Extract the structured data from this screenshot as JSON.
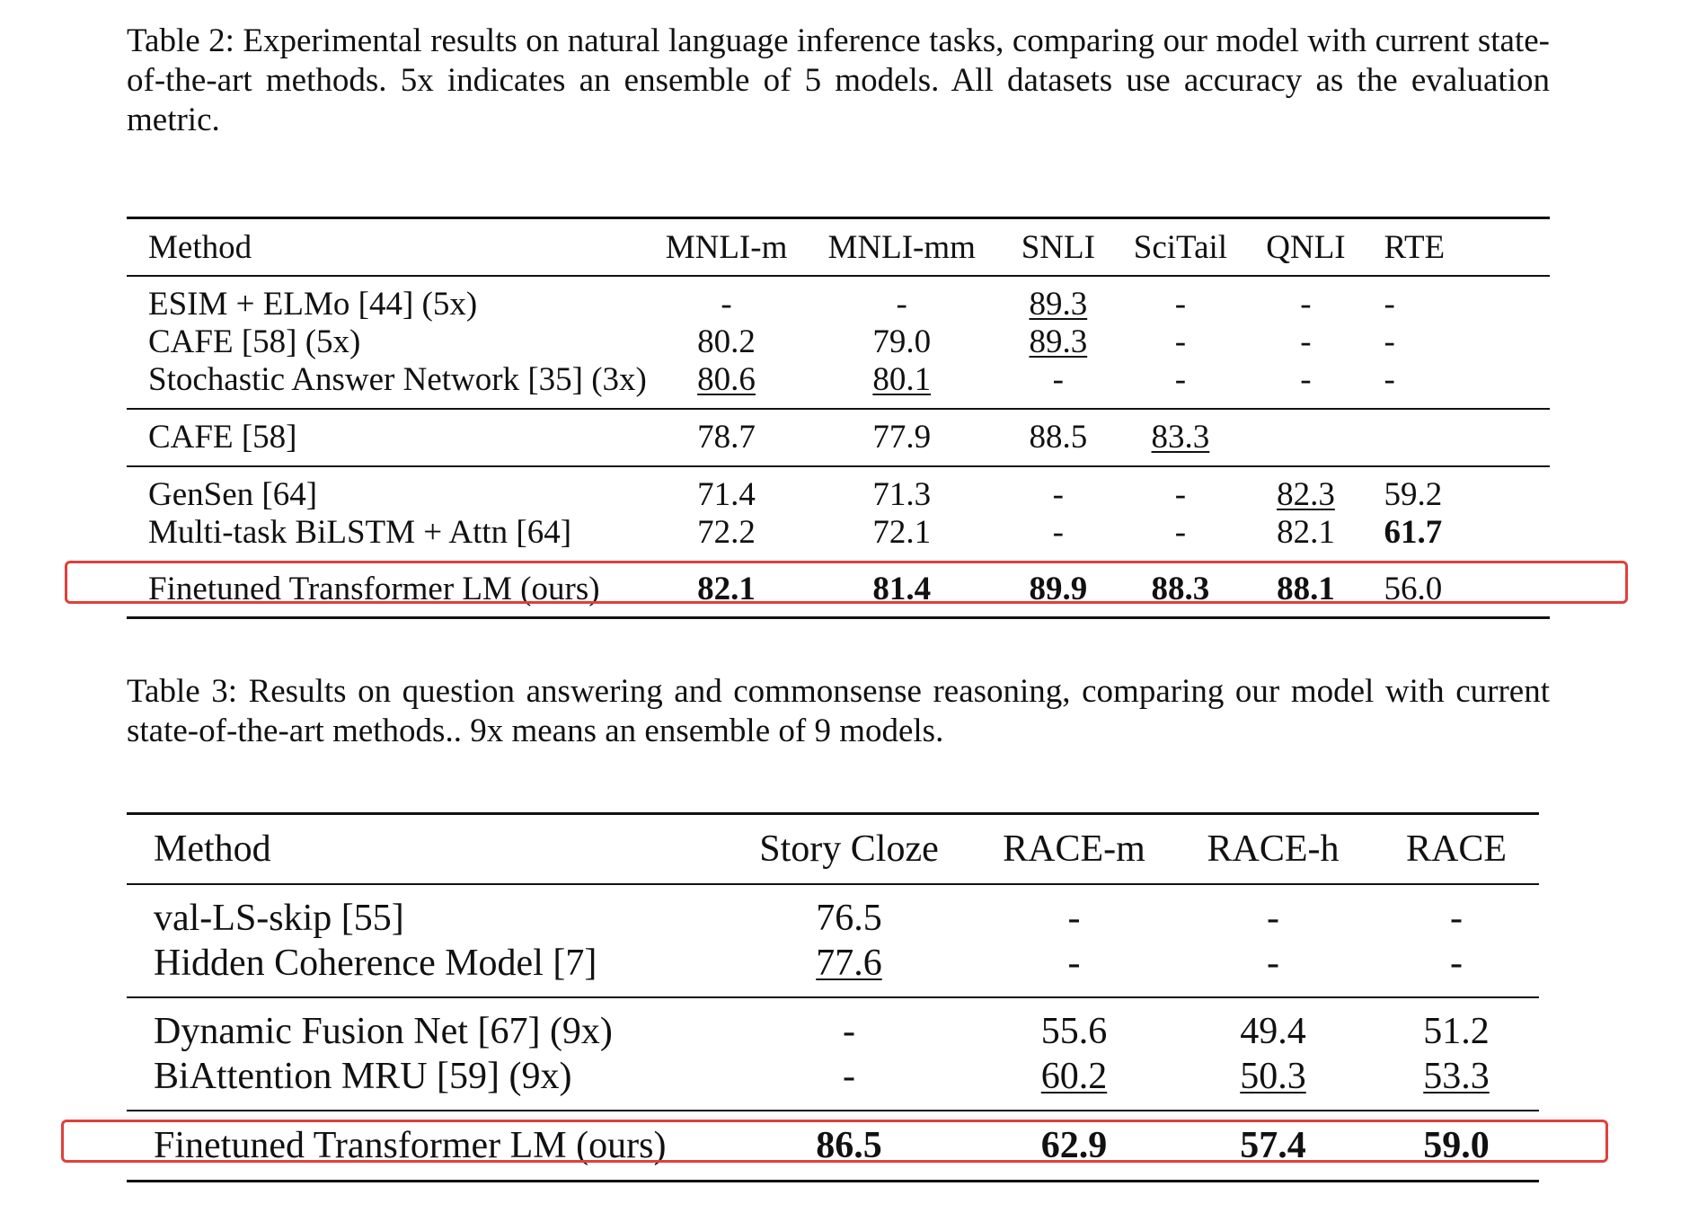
{
  "table2": {
    "caption": "Table 2: Experimental results on natural language inference tasks, comparing our model with current state-of-the-art methods. 5x indicates an ensemble of 5 models. All datasets use accuracy as the evaluation metric.",
    "headers": [
      "Method",
      "MNLI-m",
      "MNLI-mm",
      "SNLI",
      "SciTail",
      "QNLI",
      "RTE"
    ],
    "rows": [
      {
        "method": "ESIM + ELMo [44] (5x)",
        "cells": [
          {
            "v": "-"
          },
          {
            "v": "-"
          },
          {
            "v": "89.3",
            "u": true
          },
          {
            "v": "-"
          },
          {
            "v": "-"
          },
          {
            "v": "-"
          }
        ]
      },
      {
        "method": "CAFE [58] (5x)",
        "cells": [
          {
            "v": "80.2"
          },
          {
            "v": "79.0"
          },
          {
            "v": "89.3",
            "u": true
          },
          {
            "v": "-"
          },
          {
            "v": "-"
          },
          {
            "v": "-"
          }
        ]
      },
      {
        "method": "Stochastic Answer Network [35] (3x)",
        "cells": [
          {
            "v": "80.6",
            "u": true
          },
          {
            "v": "80.1",
            "u": true
          },
          {
            "v": "-"
          },
          {
            "v": "-"
          },
          {
            "v": "-"
          },
          {
            "v": "-"
          }
        ]
      },
      {
        "method": "CAFE [58]",
        "cells": [
          {
            "v": "78.7"
          },
          {
            "v": "77.9"
          },
          {
            "v": "88.5"
          },
          {
            "v": "83.3",
            "u": true
          },
          {
            "v": ""
          },
          {
            "v": ""
          }
        ]
      },
      {
        "method": "GenSen [64]",
        "cells": [
          {
            "v": "71.4"
          },
          {
            "v": "71.3"
          },
          {
            "v": "-"
          },
          {
            "v": "-"
          },
          {
            "v": "82.3",
            "u": true
          },
          {
            "v": "59.2"
          }
        ]
      },
      {
        "method": "Multi-task BiLSTM + Attn [64]",
        "cells": [
          {
            "v": "72.2"
          },
          {
            "v": "72.1"
          },
          {
            "v": "-"
          },
          {
            "v": "-"
          },
          {
            "v": "82.1"
          },
          {
            "v": "61.7",
            "b": true
          }
        ]
      },
      {
        "method": "Finetuned Transformer LM (ours)",
        "cells": [
          {
            "v": "82.1",
            "b": true
          },
          {
            "v": "81.4",
            "b": true
          },
          {
            "v": "89.9",
            "b": true
          },
          {
            "v": "88.3",
            "b": true
          },
          {
            "v": "88.1",
            "b": true
          },
          {
            "v": "56.0"
          }
        ]
      }
    ]
  },
  "table3": {
    "caption": "Table 3: Results on question answering and commonsense reasoning, comparing our model with current state-of-the-art methods.. 9x means an ensemble of 9 models.",
    "headers": [
      "Method",
      "Story Cloze",
      "RACE-m",
      "RACE-h",
      "RACE"
    ],
    "rows": [
      {
        "method": "val-LS-skip [55]",
        "cells": [
          {
            "v": "76.5"
          },
          {
            "v": "-"
          },
          {
            "v": "-"
          },
          {
            "v": "-"
          }
        ]
      },
      {
        "method": "Hidden Coherence Model [7]",
        "cells": [
          {
            "v": "77.6",
            "u": true
          },
          {
            "v": "-"
          },
          {
            "v": "-"
          },
          {
            "v": "-"
          }
        ]
      },
      {
        "method": "Dynamic Fusion Net [67] (9x)",
        "cells": [
          {
            "v": "-"
          },
          {
            "v": "55.6"
          },
          {
            "v": "49.4"
          },
          {
            "v": "51.2"
          }
        ]
      },
      {
        "method": "BiAttention MRU [59] (9x)",
        "cells": [
          {
            "v": "-"
          },
          {
            "v": "60.2",
            "u": true
          },
          {
            "v": "50.3",
            "u": true
          },
          {
            "v": "53.3",
            "u": true
          }
        ]
      },
      {
        "method": "Finetuned Transformer LM (ours)",
        "cells": [
          {
            "v": "86.5",
            "b": true
          },
          {
            "v": "62.9",
            "b": true
          },
          {
            "v": "57.4",
            "b": true
          },
          {
            "v": "59.0",
            "b": true
          }
        ]
      }
    ]
  },
  "colors": {
    "highlight": "#e0403a",
    "text": "#111111",
    "background": "#ffffff"
  }
}
